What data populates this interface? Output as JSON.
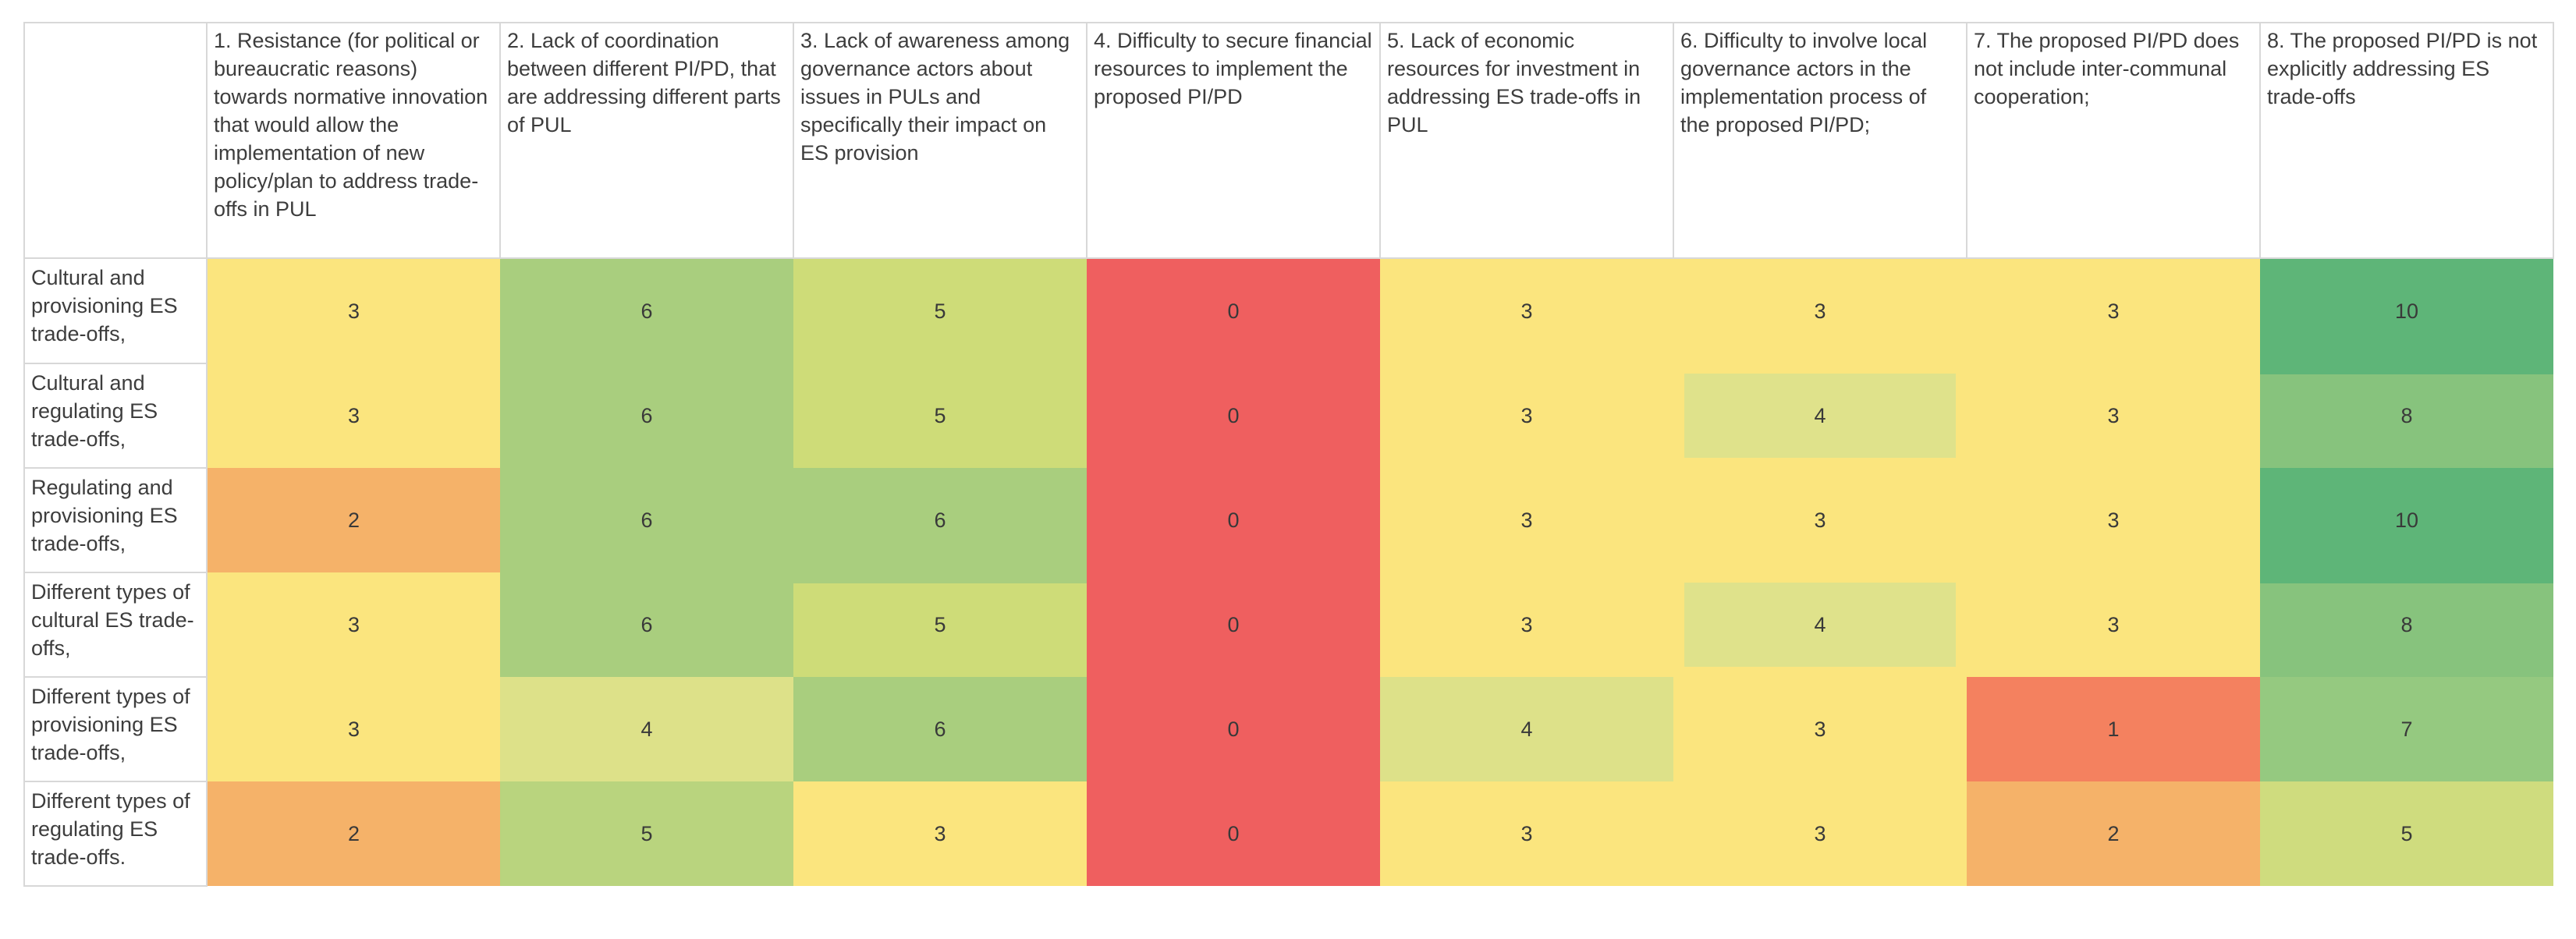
{
  "chart_data": {
    "type": "heatmap",
    "title": "",
    "legend": "none",
    "grid": "header and row-label borders only; heatmap cells seamless",
    "columns": [
      "1. Resistance (for political or bureaucratic reasons) towards normative innovation that would allow the implementation of new policy/plan to address trade-offs in PUL",
      "2. Lack of coordination between different PI/PD, that are addressing different parts of PUL",
      "3. Lack of awareness among governance actors about issues in PULs and specifically their impact on ES provision",
      "4. Difficulty to secure financial resources to implement the proposed PI/PD",
      "5. Lack of economic resources for investment in addressing ES trade-offs in PUL",
      "6. Difficulty to involve local governance actors in the implementation process of the proposed PI/PD;",
      "7. The proposed PI/PD does not include inter-communal cooperation;",
      "8. The proposed PI/PD is not explicitly addressing ES trade-offs"
    ],
    "row_labels": [
      "Cultural and provisioning ES trade-offs,",
      "Cultural and regulating ES trade-offs,",
      "Regulating and provisioning ES trade-offs,",
      "Different types of cultural ES trade-offs,",
      "Different types of provisioning ES trade-offs,",
      "Different types of regulating ES trade-offs."
    ],
    "values": [
      [
        3,
        6,
        5,
        0,
        3,
        3,
        3,
        10
      ],
      [
        3,
        6,
        5,
        0,
        3,
        4,
        3,
        8
      ],
      [
        2,
        6,
        6,
        0,
        3,
        3,
        3,
        10
      ],
      [
        3,
        6,
        5,
        0,
        3,
        4,
        3,
        8
      ],
      [
        3,
        4,
        6,
        0,
        4,
        3,
        1,
        7
      ],
      [
        2,
        5,
        3,
        0,
        3,
        3,
        2,
        5
      ]
    ],
    "value_range": [
      0,
      10
    ],
    "color_meaning": "red=low/0, orange=1-2, yellow=3, yellow-green=4-5, green=6-10",
    "cells": [
      [
        {
          "v": "3",
          "c": "#fbe57e"
        },
        {
          "v": "6",
          "c": "#a9ce7e"
        },
        {
          "v": "5",
          "c": "#cedc78"
        },
        {
          "v": "0",
          "c": "#ef5f5f"
        },
        {
          "v": "3",
          "c": "#fbe57e"
        },
        {
          "v": "3",
          "c": "#fbe57e"
        },
        {
          "v": "3",
          "c": "#fbe57e"
        },
        {
          "v": "10",
          "c": "#5eb578"
        }
      ],
      [
        {
          "v": "3",
          "c": "#fbe57e"
        },
        {
          "v": "6",
          "c": "#a9ce7e"
        },
        {
          "v": "5",
          "c": "#cedc78"
        },
        {
          "v": "0",
          "c": "#ef5f5f"
        },
        {
          "v": "3",
          "c": "#fbe57e"
        },
        {
          "v": "4",
          "c": "#dfe28b",
          "box": "#fbe57e"
        },
        {
          "v": "3",
          "c": "#fbe57e"
        },
        {
          "v": "8",
          "c": "#87c37d",
          "t": "#5eb578"
        }
      ],
      [
        {
          "v": "2",
          "c": "#f5b269"
        },
        {
          "v": "6",
          "c": "#a9ce7e"
        },
        {
          "v": "6",
          "c": "#a9ce7e"
        },
        {
          "v": "0",
          "c": "#ef5f5f"
        },
        {
          "v": "3",
          "c": "#fbe57e"
        },
        {
          "v": "3",
          "c": "#fbe57e"
        },
        {
          "v": "3",
          "c": "#fbe57e"
        },
        {
          "v": "10",
          "c": "#5eb578"
        }
      ],
      [
        {
          "v": "3",
          "c": "#fbe57e"
        },
        {
          "v": "6",
          "c": "#a9ce7e"
        },
        {
          "v": "5",
          "c": "#cedc78",
          "t": "#a9ce7e"
        },
        {
          "v": "0",
          "c": "#ef5f5f"
        },
        {
          "v": "3",
          "c": "#fbe57e"
        },
        {
          "v": "4",
          "c": "#dfe28b",
          "box": "#fbe57e"
        },
        {
          "v": "3",
          "c": "#fbe57e"
        },
        {
          "v": "8",
          "c": "#87c37d",
          "t": "#5eb578"
        }
      ],
      [
        {
          "v": "3",
          "c": "#fbe57e"
        },
        {
          "v": "4",
          "c": "#dde189"
        },
        {
          "v": "6",
          "c": "#a9ce7e"
        },
        {
          "v": "0",
          "c": "#ef5f5f"
        },
        {
          "v": "4",
          "c": "#dde189"
        },
        {
          "v": "3",
          "c": "#fbe57e"
        },
        {
          "v": "1",
          "c": "#f4815f"
        },
        {
          "v": "7",
          "c": "#95c980"
        }
      ],
      [
        {
          "v": "2",
          "c": "#f5b269"
        },
        {
          "v": "5",
          "c": "#b9d47e"
        },
        {
          "v": "3",
          "c": "#fbe57e"
        },
        {
          "v": "0",
          "c": "#ef5f5f"
        },
        {
          "v": "3",
          "c": "#fbe57e"
        },
        {
          "v": "3",
          "c": "#fbe57e"
        },
        {
          "v": "2",
          "c": "#f5b269"
        },
        {
          "v": "5",
          "c": "#cfdc7e"
        }
      ]
    ]
  }
}
